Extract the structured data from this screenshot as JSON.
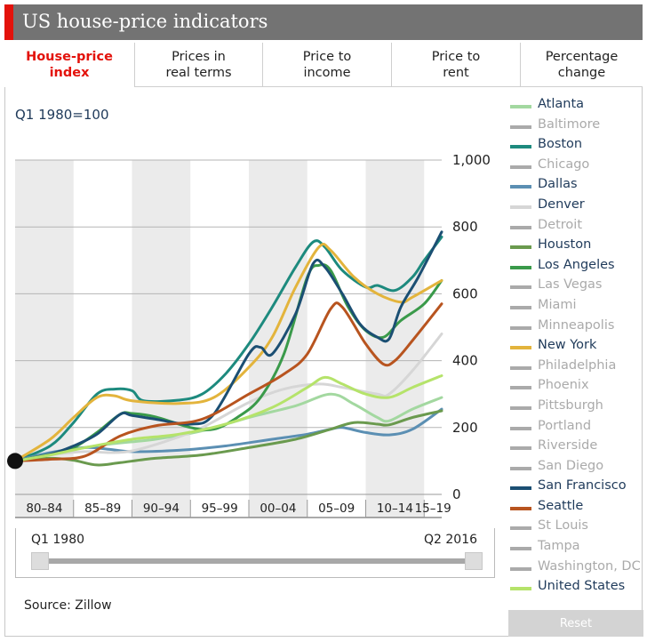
{
  "title": "US house-price indicators",
  "tabs": [
    {
      "label": "House-price\nindex",
      "active": true
    },
    {
      "label": "Prices in\nreal terms",
      "active": false
    },
    {
      "label": "Price to\nincome",
      "active": false
    },
    {
      "label": "Price to\nrent",
      "active": false
    },
    {
      "label": "Percentage\nchange",
      "active": false
    }
  ],
  "unit_label": "Q1 1980=100",
  "colors": {
    "title_bar": "#737373",
    "accent": "#e3120b",
    "inactive": "#aaaaaa",
    "label_blue": "#1f3a5a",
    "band": "#ebebeb"
  },
  "legend": [
    {
      "name": "Atlanta",
      "color": "#a3d8a0",
      "active": true
    },
    {
      "name": "Baltimore",
      "color": "#aaaaaa",
      "active": false
    },
    {
      "name": "Boston",
      "color": "#1d8a7e",
      "active": true
    },
    {
      "name": "Chicago",
      "color": "#aaaaaa",
      "active": false
    },
    {
      "name": "Dallas",
      "color": "#5b8fb3",
      "active": true
    },
    {
      "name": "Denver",
      "color": "#d6d6d6",
      "active": true
    },
    {
      "name": "Detroit",
      "color": "#aaaaaa",
      "active": false
    },
    {
      "name": "Houston",
      "color": "#6a9a4e",
      "active": true
    },
    {
      "name": "Los Angeles",
      "color": "#3a9a4a",
      "active": true
    },
    {
      "name": "Las Vegas",
      "color": "#aaaaaa",
      "active": false
    },
    {
      "name": "Miami",
      "color": "#aaaaaa",
      "active": false
    },
    {
      "name": "Minneapolis",
      "color": "#aaaaaa",
      "active": false
    },
    {
      "name": "New York",
      "color": "#e3b43c",
      "active": true
    },
    {
      "name": "Philadelphia",
      "color": "#aaaaaa",
      "active": false
    },
    {
      "name": "Phoenix",
      "color": "#aaaaaa",
      "active": false
    },
    {
      "name": "Pittsburgh",
      "color": "#aaaaaa",
      "active": false
    },
    {
      "name": "Portland",
      "color": "#aaaaaa",
      "active": false
    },
    {
      "name": "Riverside",
      "color": "#aaaaaa",
      "active": false
    },
    {
      "name": "San Diego",
      "color": "#aaaaaa",
      "active": false
    },
    {
      "name": "San Francisco",
      "color": "#1b4f73",
      "active": true
    },
    {
      "name": "Seattle",
      "color": "#b8541f",
      "active": true
    },
    {
      "name": "St Louis",
      "color": "#aaaaaa",
      "active": false
    },
    {
      "name": "Tampa",
      "color": "#aaaaaa",
      "active": false
    },
    {
      "name": "Washington, DC",
      "color": "#aaaaaa",
      "active": false
    },
    {
      "name": "United States",
      "color": "#b5e36a",
      "active": true
    }
  ],
  "slider": {
    "start_label": "Q1 1980",
    "end_label": "Q2 2016"
  },
  "source": "Source: Zillow",
  "reset_label": "Reset",
  "chart_data": {
    "type": "line",
    "x_categories": [
      "80–84",
      "85–89",
      "90–94",
      "95–99",
      "00–04",
      "05–09",
      "10–14",
      "15–19"
    ],
    "ylim": [
      0,
      1000
    ],
    "yticks": [
      0,
      200,
      400,
      600,
      800,
      1000
    ],
    "ytick_labels": [
      "0",
      "200",
      "400",
      "600",
      "800",
      "1,000"
    ],
    "x_range": [
      1980,
      2016.5
    ],
    "band_periods": [
      [
        1980,
        1985
      ],
      [
        1990,
        1995
      ],
      [
        2000,
        2005
      ],
      [
        2010,
        2015
      ]
    ],
    "start_marker": {
      "x": 1980,
      "y": 100
    },
    "series": [
      {
        "name": "Atlanta",
        "color": "#a3d8a0",
        "points": [
          [
            1980,
            100
          ],
          [
            1984,
            130
          ],
          [
            1988,
            150
          ],
          [
            1992,
            165
          ],
          [
            1996,
            190
          ],
          [
            2000,
            230
          ],
          [
            2004,
            265
          ],
          [
            2007,
            300
          ],
          [
            2009,
            270
          ],
          [
            2011,
            230
          ],
          [
            2012,
            220
          ],
          [
            2014,
            255
          ],
          [
            2016.5,
            290
          ]
        ]
      },
      {
        "name": "Boston",
        "color": "#1d8a7e",
        "points": [
          [
            1980,
            100
          ],
          [
            1983,
            145
          ],
          [
            1985,
            215
          ],
          [
            1987,
            300
          ],
          [
            1988.5,
            315
          ],
          [
            1990,
            310
          ],
          [
            1991,
            280
          ],
          [
            1994,
            282
          ],
          [
            1996,
            300
          ],
          [
            1998,
            360
          ],
          [
            2000,
            450
          ],
          [
            2002,
            560
          ],
          [
            2004,
            680
          ],
          [
            2005.5,
            755
          ],
          [
            2006.5,
            740
          ],
          [
            2008,
            670
          ],
          [
            2010,
            620
          ],
          [
            2011,
            625
          ],
          [
            2012.5,
            610
          ],
          [
            2014,
            650
          ],
          [
            2015,
            700
          ],
          [
            2016.5,
            770
          ]
        ]
      },
      {
        "name": "Dallas",
        "color": "#5b8fb3",
        "points": [
          [
            1980,
            100
          ],
          [
            1983,
            125
          ],
          [
            1986,
            140
          ],
          [
            1988,
            135
          ],
          [
            1990,
            128
          ],
          [
            1994,
            132
          ],
          [
            1998,
            145
          ],
          [
            2002,
            165
          ],
          [
            2005,
            180
          ],
          [
            2007,
            195
          ],
          [
            2008,
            200
          ],
          [
            2010,
            185
          ],
          [
            2012,
            178
          ],
          [
            2014,
            195
          ],
          [
            2016.5,
            255
          ]
        ]
      },
      {
        "name": "Denver",
        "color": "#d6d6d6",
        "points": [
          [
            1980,
            100
          ],
          [
            1983,
            118
          ],
          [
            1986,
            128
          ],
          [
            1988,
            125
          ],
          [
            1990,
            130
          ],
          [
            1993,
            160
          ],
          [
            1996,
            200
          ],
          [
            2000,
            275
          ],
          [
            2003,
            315
          ],
          [
            2006,
            330
          ],
          [
            2008,
            320
          ],
          [
            2011,
            300
          ],
          [
            2012,
            300
          ],
          [
            2014,
            370
          ],
          [
            2016.5,
            480
          ]
        ]
      },
      {
        "name": "Houston",
        "color": "#6a9a4e",
        "points": [
          [
            1980,
            100
          ],
          [
            1983,
            108
          ],
          [
            1985,
            102
          ],
          [
            1987,
            88
          ],
          [
            1989,
            95
          ],
          [
            1992,
            108
          ],
          [
            1996,
            118
          ],
          [
            2000,
            140
          ],
          [
            2004,
            165
          ],
          [
            2007,
            195
          ],
          [
            2009,
            215
          ],
          [
            2011,
            210
          ],
          [
            2012,
            208
          ],
          [
            2014,
            230
          ],
          [
            2016.5,
            250
          ]
        ]
      },
      {
        "name": "Los Angeles",
        "color": "#3a9a4a",
        "points": [
          [
            1980,
            100
          ],
          [
            1983,
            120
          ],
          [
            1985,
            140
          ],
          [
            1987,
            185
          ],
          [
            1989,
            240
          ],
          [
            1990,
            242
          ],
          [
            1992,
            232
          ],
          [
            1995,
            200
          ],
          [
            1997,
            195
          ],
          [
            1999,
            230
          ],
          [
            2001,
            290
          ],
          [
            2003,
            420
          ],
          [
            2005,
            650
          ],
          [
            2006,
            685
          ],
          [
            2007,
            670
          ],
          [
            2008.5,
            560
          ],
          [
            2010,
            490
          ],
          [
            2011.5,
            470
          ],
          [
            2013,
            520
          ],
          [
            2015,
            570
          ],
          [
            2016.5,
            640
          ]
        ]
      },
      {
        "name": "New York",
        "color": "#e3b43c",
        "points": [
          [
            1980,
            100
          ],
          [
            1983,
            165
          ],
          [
            1985,
            230
          ],
          [
            1987,
            290
          ],
          [
            1988.5,
            295
          ],
          [
            1990,
            280
          ],
          [
            1994,
            272
          ],
          [
            1997,
            290
          ],
          [
            2000,
            380
          ],
          [
            2002,
            470
          ],
          [
            2004,
            620
          ],
          [
            2006,
            740
          ],
          [
            2007,
            730
          ],
          [
            2009,
            650
          ],
          [
            2011,
            600
          ],
          [
            2013,
            575
          ],
          [
            2014,
            590
          ],
          [
            2016.5,
            640
          ]
        ]
      },
      {
        "name": "San Francisco",
        "color": "#1b4f73",
        "points": [
          [
            1980,
            100
          ],
          [
            1983,
            120
          ],
          [
            1985,
            145
          ],
          [
            1987,
            180
          ],
          [
            1989,
            240
          ],
          [
            1990,
            236
          ],
          [
            1992,
            225
          ],
          [
            1995,
            210
          ],
          [
            1997,
            240
          ],
          [
            2000,
            420
          ],
          [
            2001,
            440
          ],
          [
            2002,
            420
          ],
          [
            2004,
            540
          ],
          [
            2005.5,
            690
          ],
          [
            2006.5,
            680
          ],
          [
            2008,
            600
          ],
          [
            2009.5,
            510
          ],
          [
            2011,
            470
          ],
          [
            2012,
            465
          ],
          [
            2013,
            560
          ],
          [
            2014.5,
            650
          ],
          [
            2016.5,
            785
          ]
        ]
      },
      {
        "name": "Seattle",
        "color": "#b8541f",
        "points": [
          [
            1980,
            100
          ],
          [
            1983,
            105
          ],
          [
            1986,
            115
          ],
          [
            1989,
            175
          ],
          [
            1992,
            205
          ],
          [
            1996,
            225
          ],
          [
            2000,
            300
          ],
          [
            2003,
            360
          ],
          [
            2005,
            420
          ],
          [
            2007,
            555
          ],
          [
            2008,
            560
          ],
          [
            2010,
            450
          ],
          [
            2011.5,
            390
          ],
          [
            2012.5,
            400
          ],
          [
            2014,
            460
          ],
          [
            2016.5,
            570
          ]
        ]
      },
      {
        "name": "United States",
        "color": "#b5e36a",
        "points": [
          [
            1980,
            100
          ],
          [
            1983,
            118
          ],
          [
            1986,
            140
          ],
          [
            1990,
            165
          ],
          [
            1994,
            180
          ],
          [
            1998,
            210
          ],
          [
            2002,
            260
          ],
          [
            2005,
            320
          ],
          [
            2006.5,
            350
          ],
          [
            2008,
            330
          ],
          [
            2010,
            300
          ],
          [
            2012,
            290
          ],
          [
            2014,
            320
          ],
          [
            2016.5,
            355
          ]
        ]
      }
    ]
  }
}
